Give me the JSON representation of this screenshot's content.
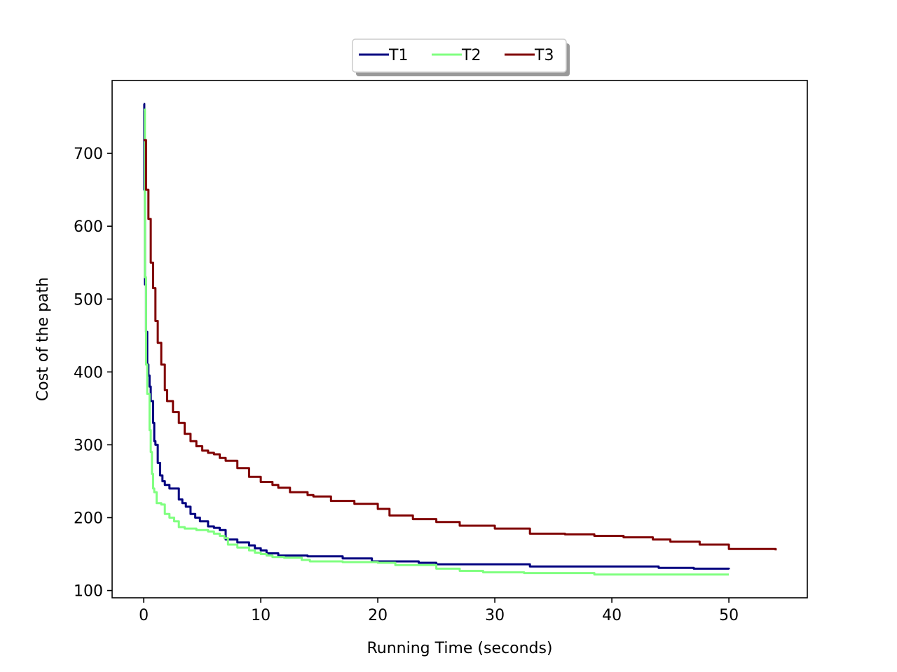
{
  "chart_data": {
    "type": "line",
    "title": "",
    "xlabel": "Running Time (seconds)",
    "ylabel": "Cost of the path",
    "xlim": [
      -2.7,
      56.7
    ],
    "ylim": [
      90,
      800
    ],
    "xticks": [
      0,
      10,
      20,
      30,
      40,
      50
    ],
    "yticks": [
      100,
      200,
      300,
      400,
      500,
      600,
      700
    ],
    "grid": false,
    "legend": {
      "placement": "top-center",
      "ncol": 3,
      "shadow": true
    },
    "series": [
      {
        "name": "T1",
        "color": "#000080",
        "x": [
          0,
          0.05,
          0.1,
          0.2,
          0.3,
          0.4,
          0.5,
          0.6,
          0.8,
          0.9,
          1.0,
          1.2,
          1.4,
          1.6,
          1.8,
          2.0,
          2.2,
          2.5,
          3.0,
          3.3,
          3.6,
          4.0,
          4.4,
          4.8,
          5.5,
          6.0,
          6.5,
          7.0,
          7.5,
          8.0,
          9.0,
          9.5,
          10.0,
          10.5,
          11.5,
          14.0,
          17.0,
          19.5,
          23.5,
          25.0,
          33.0,
          44.0,
          47.0,
          50.0
        ],
        "y": [
          768,
          650,
          520,
          455,
          410,
          395,
          380,
          360,
          330,
          305,
          300,
          275,
          258,
          250,
          245,
          245,
          240,
          240,
          225,
          220,
          215,
          205,
          200,
          195,
          188,
          186,
          183,
          170,
          170,
          166,
          162,
          158,
          155,
          151,
          148,
          147,
          144,
          140,
          138,
          136,
          133,
          131,
          130,
          129
        ]
      },
      {
        "name": "T2",
        "color": "#80ff80",
        "x": [
          0,
          0.1,
          0.2,
          0.3,
          0.5,
          0.6,
          0.7,
          0.8,
          0.9,
          1.1,
          1.5,
          1.8,
          2.2,
          2.6,
          3.0,
          3.5,
          4.5,
          5.5,
          6.0,
          6.5,
          6.9,
          7.2,
          8.0,
          9.0,
          9.5,
          10.0,
          10.5,
          11.0,
          12.0,
          13.5,
          14.2,
          17.0,
          20.0,
          21.5,
          25.0,
          27.0,
          29.0,
          32.5,
          38.5,
          50.0
        ],
        "y": [
          760,
          530,
          410,
          370,
          320,
          290,
          260,
          240,
          235,
          220,
          218,
          205,
          200,
          195,
          187,
          185,
          183,
          181,
          178,
          175,
          172,
          163,
          159,
          155,
          152,
          150,
          148,
          146,
          145,
          142,
          140,
          139,
          138,
          135,
          130,
          127,
          125,
          124,
          122,
          122
        ]
      },
      {
        "name": "T3",
        "color": "#800000",
        "x": [
          0,
          0.2,
          0.4,
          0.6,
          0.8,
          1.0,
          1.2,
          1.5,
          1.8,
          2.0,
          2.5,
          3.0,
          3.5,
          4.0,
          4.5,
          5.0,
          5.5,
          6.0,
          6.5,
          7.0,
          8.0,
          9.0,
          10.0,
          11.0,
          11.5,
          12.5,
          14.0,
          14.5,
          16.0,
          18.0,
          20.0,
          21.0,
          23.0,
          25.0,
          27.0,
          30.0,
          33.0,
          36.0,
          38.5,
          41.0,
          43.5,
          45.0,
          47.5,
          50.0,
          54.0
        ],
        "y": [
          718,
          650,
          610,
          550,
          515,
          470,
          440,
          410,
          375,
          360,
          345,
          330,
          315,
          305,
          298,
          292,
          289,
          287,
          282,
          278,
          268,
          256,
          249,
          245,
          241,
          235,
          231,
          229,
          223,
          219,
          212,
          203,
          198,
          194,
          189,
          185,
          178,
          177,
          175,
          173,
          170,
          167,
          163,
          157,
          155
        ]
      }
    ]
  }
}
